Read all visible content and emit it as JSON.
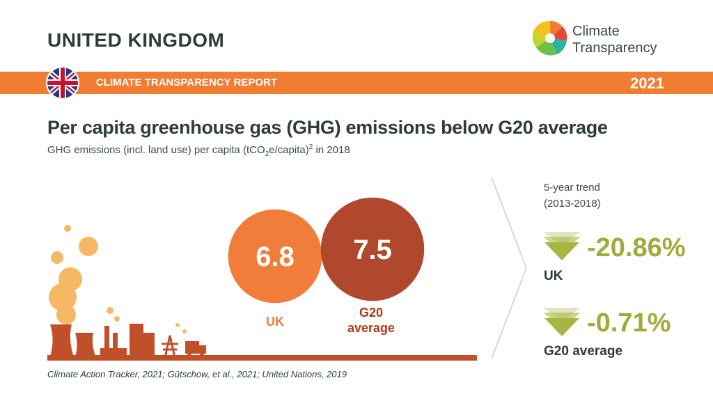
{
  "header": {
    "country": "UNITED KINGDOM",
    "logo": [
      "Climate",
      "Transparency"
    ]
  },
  "banner": {
    "report": "CLIMATE TRANSPARENCY REPORT",
    "year": "2021"
  },
  "title": "Per capita greenhouse gas (GHG) emissions below G20 average",
  "subtitle": [
    "GHG emissions (incl. land use) per capita (tCO",
    "2",
    "e/capita)",
    "2",
    " in 2018"
  ],
  "bubbles": [
    {
      "label": "UK",
      "value": 6.8
    },
    {
      "label": "G20 average",
      "value": 7.5
    }
  ],
  "trend": {
    "heading": "5-year trend (2013-2018)",
    "items": [
      {
        "value": "-20.86%",
        "name": "UK"
      },
      {
        "value": "-0.71%",
        "name": "G20 average"
      }
    ]
  },
  "source": "Climate Action Tracker, 2021; Gütschow, et al., 2021; United Nations, 2019"
}
